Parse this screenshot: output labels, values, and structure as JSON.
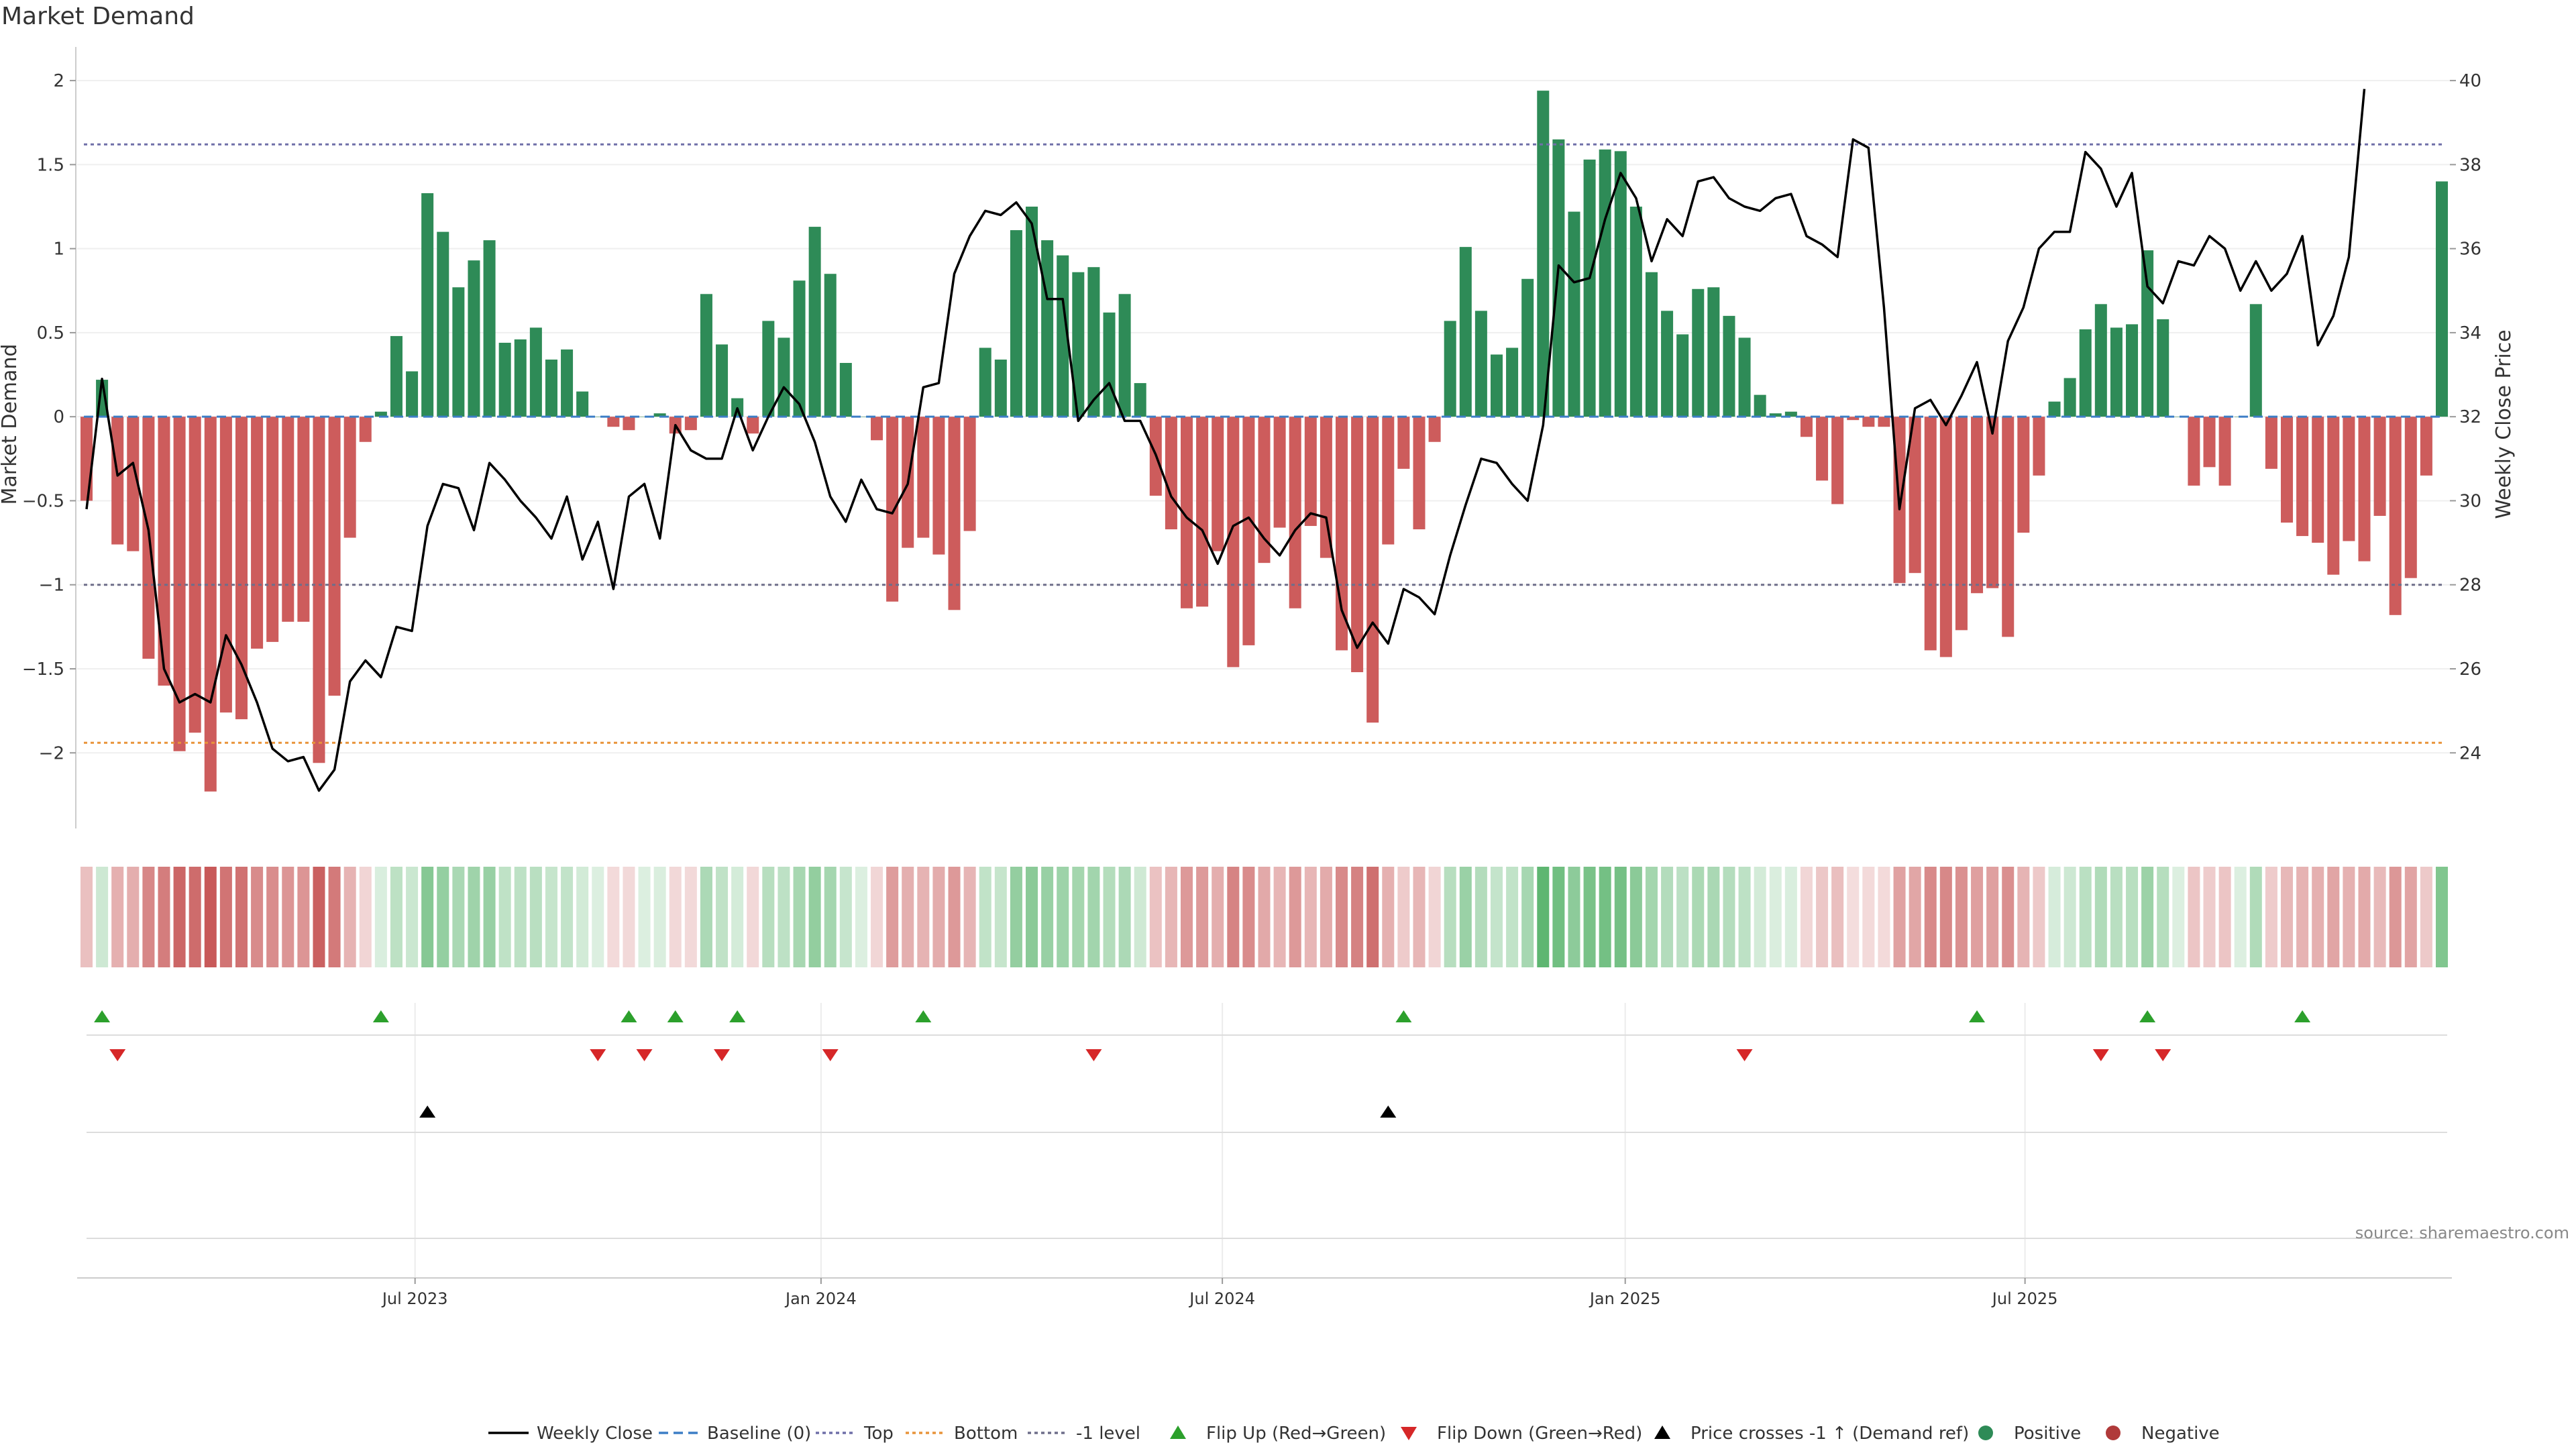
{
  "chart_data": {
    "type": "bar",
    "title": "Market Demand",
    "ylabel": "Market Demand",
    "y2label": "Weekly Close Price",
    "source": "source: sharemaestro.com",
    "ylim": [
      -2.45,
      2.2
    ],
    "y2lim": [
      22.2,
      40.8
    ],
    "yticks": [
      "−2",
      "−1.5",
      "−1",
      "−0.5",
      "0",
      "0.5",
      "1",
      "1.5",
      "2"
    ],
    "yticks_values": [
      -2,
      -1.5,
      -1,
      -0.5,
      0,
      0.5,
      1,
      1.5,
      2
    ],
    "y2ticks": [
      "24",
      "26",
      "28",
      "30",
      "32",
      "34",
      "36",
      "38",
      "40"
    ],
    "y2ticks_values": [
      24,
      26,
      28,
      30,
      32,
      34,
      36,
      38,
      40
    ],
    "xticks": [
      "Jul 2023",
      "Jan 2024",
      "Jul 2024",
      "Jan 2025",
      "Jul 2025"
    ],
    "xticks_weeks": [
      21.2,
      47.4,
      73.3,
      99.3,
      125.1
    ],
    "reference_lines": {
      "top": 1.62,
      "bottom": -1.94,
      "minus_one": -1.0
    },
    "values": [
      -0.5,
      0.22,
      -0.76,
      -0.8,
      -1.44,
      -1.6,
      -1.99,
      -1.88,
      -2.23,
      -1.76,
      -1.8,
      -1.38,
      -1.34,
      -1.22,
      -1.22,
      -2.06,
      -1.66,
      -0.72,
      -0.15,
      0.03,
      0.48,
      0.27,
      1.33,
      1.1,
      0.77,
      0.93,
      1.05,
      0.44,
      0.46,
      0.53,
      0.34,
      0.4,
      0.15,
      0.0,
      -0.06,
      -0.08,
      0.0,
      0.02,
      -0.1,
      -0.08,
      0.73,
      0.43,
      0.11,
      -0.1,
      0.57,
      0.47,
      0.81,
      1.13,
      0.85,
      0.32,
      0.0,
      -0.14,
      -1.1,
      -0.78,
      -0.72,
      -0.82,
      -1.15,
      -0.68,
      0.41,
      0.34,
      1.11,
      1.25,
      1.05,
      0.96,
      0.86,
      0.89,
      0.62,
      0.73,
      0.2,
      -0.47,
      -0.67,
      -1.14,
      -1.13,
      -0.8,
      -1.49,
      -1.36,
      -0.87,
      -0.66,
      -1.14,
      -0.65,
      -0.84,
      -1.39,
      -1.52,
      -1.82,
      -0.76,
      -0.31,
      -0.67,
      -0.15,
      0.57,
      1.01,
      0.63,
      0.37,
      0.41,
      0.82,
      1.94,
      1.65,
      1.22,
      1.53,
      1.59,
      1.58,
      1.25,
      0.86,
      0.63,
      0.49,
      0.76,
      0.77,
      0.6,
      0.47,
      0.13,
      0.02,
      0.03,
      -0.12,
      -0.38,
      -0.52,
      -0.02,
      -0.06,
      -0.06,
      -0.99,
      -0.93,
      -1.39,
      -1.43,
      -1.27,
      -1.05,
      -1.02,
      -1.31,
      -0.69,
      -0.35,
      0.09,
      0.23,
      0.52,
      0.67,
      0.53,
      0.55,
      0.99,
      0.58,
      0.0,
      -0.41,
      -0.3,
      -0.41,
      0.0,
      0.67,
      -0.31,
      -0.63,
      -0.71,
      -0.75,
      -0.94,
      -0.74,
      -0.86,
      -0.59,
      -1.18,
      -0.96,
      -0.35,
      1.4
    ],
    "series": [
      {
        "name": "Weekly Close",
        "color": "#000000",
        "values": [
          29.8,
          32.9,
          30.6,
          30.9,
          29.3,
          26.0,
          25.2,
          25.4,
          25.2,
          26.8,
          26.1,
          25.2,
          24.1,
          23.8,
          23.9,
          23.1,
          23.6,
          25.7,
          26.2,
          25.8,
          27.0,
          26.9,
          29.4,
          30.4,
          30.3,
          29.3,
          30.9,
          30.5,
          30.0,
          29.6,
          29.1,
          30.1,
          28.6,
          29.5,
          27.9,
          30.1,
          30.4,
          29.1,
          31.8,
          31.2,
          31.0,
          31.0,
          32.2,
          31.2,
          32.0,
          32.7,
          32.3,
          31.4,
          30.1,
          29.5,
          30.5,
          29.8,
          29.7,
          30.4,
          32.7,
          32.8,
          35.4,
          36.3,
          36.9,
          36.8,
          37.1,
          36.6,
          34.8,
          34.8,
          31.9,
          32.4,
          32.8,
          31.9,
          31.9,
          31.1,
          30.1,
          29.6,
          29.3,
          28.5,
          29.4,
          29.6,
          29.1,
          28.7,
          29.3,
          29.7,
          29.6,
          27.4,
          26.5,
          27.1,
          26.6,
          27.9,
          27.7,
          27.3,
          28.7,
          29.9,
          31.0,
          30.9,
          30.4,
          30.0,
          31.8,
          35.6,
          35.2,
          35.3,
          36.7,
          37.8,
          37.2,
          35.7,
          36.7,
          36.3,
          37.6,
          37.7,
          37.2,
          37.0,
          36.9,
          37.2,
          37.3,
          36.3,
          36.1,
          35.8,
          38.6,
          38.4,
          34.6,
          29.8,
          32.2,
          32.4,
          31.8,
          32.5,
          33.3,
          31.6,
          33.8,
          34.6,
          36.0,
          36.4,
          36.4,
          38.3,
          37.9,
          37.0,
          37.8,
          35.1,
          34.7,
          35.7,
          35.6,
          36.3,
          36.0,
          35.0,
          35.7,
          35.0,
          35.4,
          36.3,
          33.7,
          34.4,
          35.8,
          39.8
        ]
      },
      {
        "name": "Baseline (0)",
        "color": "#3d7ec6"
      },
      {
        "name": "Top",
        "color": "#6f6fa8"
      },
      {
        "name": "Bottom",
        "color": "#e8943a"
      },
      {
        "name": "-1 level",
        "color": "#6e6e8a"
      },
      {
        "name": "Flip Up (Red→Green)",
        "color": "#2ca02c",
        "weeks": [
          1,
          19,
          35,
          38,
          42,
          54,
          85,
          122,
          133,
          143
        ]
      },
      {
        "name": "Flip Down (Green→Red)",
        "color": "#d62728",
        "weeks": [
          2,
          33,
          36,
          41,
          48,
          65,
          107,
          130,
          134
        ]
      },
      {
        "name": "Price crosses -1 ↑ (Demand ref)",
        "color": "#000000",
        "weeks": [
          22,
          84
        ]
      },
      {
        "name": "Positive",
        "color": "#2e8b57"
      },
      {
        "name": "Negative",
        "color": "#cd5c5c"
      }
    ]
  }
}
